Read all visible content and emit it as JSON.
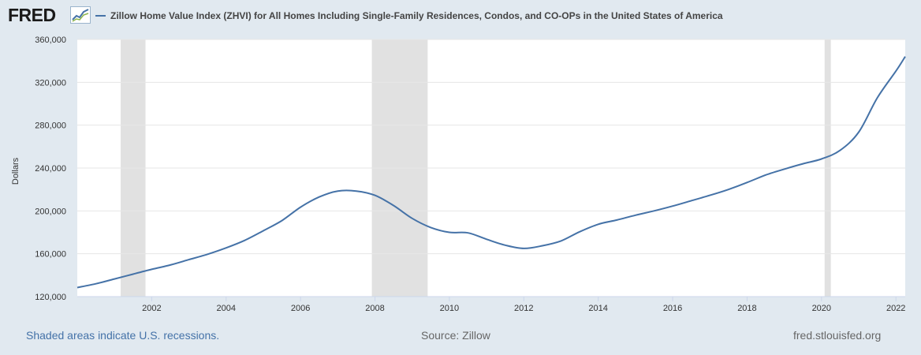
{
  "header": {
    "logo_text": "FRED",
    "logo_icon": "fred-chart-icon",
    "series_title": "Zillow Home Value Index (ZHVI) for All Homes Including Single-Family Residences, Condos, and CO-OPs in the United States of America"
  },
  "colors": {
    "line": "#4572a7",
    "recession": "#e1e1e1",
    "grid": "#e6e6e6",
    "background": "#e1e9f0"
  },
  "footer": {
    "recession_note": "Shaded areas indicate U.S. recessions.",
    "source": "Source: Zillow",
    "site": "fred.stlouisfed.org"
  },
  "chart_data": {
    "type": "line",
    "title": "Zillow Home Value Index (ZHVI) for All Homes Including Single-Family Residences, Condos, and CO-OPs in the United States of America",
    "ylabel": "Dollars",
    "xlabel": "",
    "xlim": [
      "2000-01",
      "2022-04"
    ],
    "ylim": [
      120000,
      360000
    ],
    "grid": true,
    "legend": "top-left",
    "xticks": [
      "2002",
      "2004",
      "2006",
      "2008",
      "2010",
      "2012",
      "2014",
      "2016",
      "2018",
      "2020",
      "2022"
    ],
    "yticks": [
      "120,000",
      "160,000",
      "200,000",
      "240,000",
      "280,000",
      "320,000",
      "360,000"
    ],
    "recessions": [
      {
        "start": "2001-03",
        "end": "2001-11"
      },
      {
        "start": "2007-12",
        "end": "2009-06"
      },
      {
        "start": "2020-02",
        "end": "2020-04"
      }
    ],
    "series": [
      {
        "name": "Zillow Home Value Index (ZHVI) for All Homes Including Single-Family Residences, Condos, and CO-OPs in the United States of America",
        "x": [
          "2000-01",
          "2000-07",
          "2001-01",
          "2001-07",
          "2002-01",
          "2002-07",
          "2003-01",
          "2003-07",
          "2004-01",
          "2004-07",
          "2005-01",
          "2005-07",
          "2006-01",
          "2006-07",
          "2007-01",
          "2007-07",
          "2008-01",
          "2008-07",
          "2009-01",
          "2009-07",
          "2010-01",
          "2010-07",
          "2011-01",
          "2011-07",
          "2012-01",
          "2012-07",
          "2013-01",
          "2013-07",
          "2014-01",
          "2014-07",
          "2015-01",
          "2015-07",
          "2016-01",
          "2016-07",
          "2017-01",
          "2017-07",
          "2018-01",
          "2018-07",
          "2019-01",
          "2019-07",
          "2020-01",
          "2020-07",
          "2021-01",
          "2021-07",
          "2022-01",
          "2022-04"
        ],
        "values": [
          128500,
          132000,
          136500,
          141000,
          145500,
          149500,
          154500,
          159500,
          165500,
          172500,
          181500,
          191000,
          203500,
          213000,
          218500,
          218500,
          214500,
          205000,
          193000,
          184500,
          180000,
          179500,
          173500,
          168000,
          165000,
          167500,
          172000,
          180500,
          187500,
          191500,
          196000,
          200000,
          204500,
          209500,
          214500,
          220000,
          226500,
          233500,
          239000,
          244000,
          248500,
          256500,
          273500,
          305500,
          330500,
          344000
        ]
      }
    ]
  }
}
